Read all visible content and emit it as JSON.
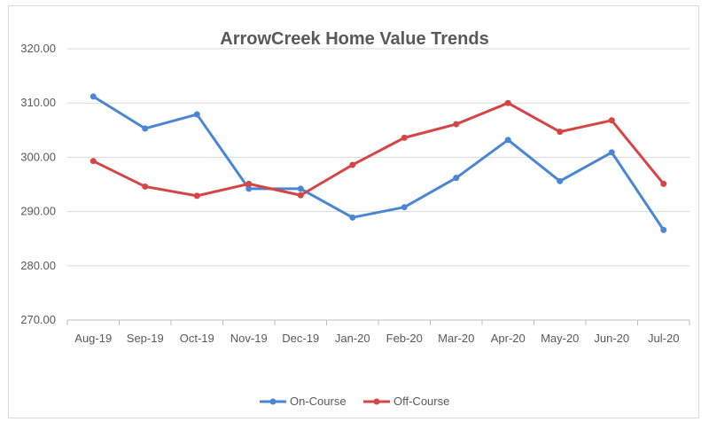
{
  "chart_data": {
    "type": "line",
    "title": "ArrowCreek Home Value Trends",
    "xlabel": "",
    "ylabel": "",
    "categories": [
      "Aug-19",
      "Sep-19",
      "Oct-19",
      "Nov-19",
      "Dec-19",
      "Jan-20",
      "Feb-20",
      "Mar-20",
      "Apr-20",
      "May-20",
      "Jun-20",
      "Jul-20"
    ],
    "ylim": [
      270,
      320
    ],
    "yticks": [
      "270.00",
      "280.00",
      "290.00",
      "300.00",
      "310.00",
      "320.00"
    ],
    "grid": true,
    "legend_position": "bottom",
    "series": [
      {
        "name": "On-Course",
        "color": "#4a86d4",
        "values": [
          311.2,
          305.3,
          307.9,
          294.2,
          294.2,
          288.9,
          290.8,
          296.2,
          303.2,
          295.6,
          300.9,
          286.6
        ]
      },
      {
        "name": "Off-Course",
        "color": "#d64545",
        "values": [
          299.3,
          294.6,
          292.9,
          295.1,
          293.0,
          298.6,
          303.6,
          306.1,
          310.0,
          304.7,
          306.8,
          295.1
        ]
      }
    ]
  }
}
